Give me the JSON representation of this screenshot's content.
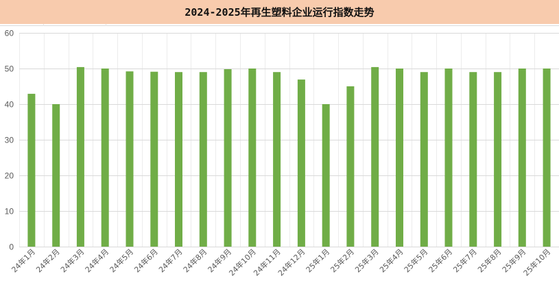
{
  "title": "2024-2025年再生塑料企业运行指数走势",
  "colors": {
    "title_band": "#F8CBAD",
    "bar": "#70AD47",
    "gridline": "#d9d9d9",
    "vgridline": "#ececec",
    "axis_text": "#595959"
  },
  "chart_data": {
    "type": "bar",
    "title": "2024-2025年再生塑料企业运行指数走势",
    "xlabel": "",
    "ylabel": "",
    "ylim": [
      0,
      60
    ],
    "yticks": [
      0,
      10,
      20,
      30,
      40,
      50,
      60
    ],
    "grid": true,
    "legend": "none",
    "categories": [
      "24年1月",
      "24年2月",
      "24年3月",
      "24年4月",
      "24年5月",
      "24年6月",
      "24年7月",
      "24年8月",
      "24年9月",
      "24年10月",
      "24年11月",
      "24年12月",
      "25年1月",
      "25年2月",
      "25年3月",
      "25年4月",
      "25年5月",
      "25年6月",
      "25年7月",
      "25年8月",
      "25年9月",
      "25年10月"
    ],
    "values": [
      42.9,
      40.0,
      50.4,
      50.0,
      49.2,
      49.1,
      49.0,
      49.0,
      49.8,
      50.0,
      49.0,
      46.9,
      40.0,
      45.0,
      50.4,
      50.0,
      49.0,
      50.0,
      49.0,
      49.0,
      50.0,
      50.0
    ]
  }
}
